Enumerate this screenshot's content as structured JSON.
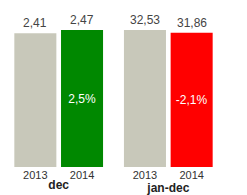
{
  "chart_data": [
    {
      "type": "bar",
      "xlabel": "dec",
      "categories": [
        "2013",
        "2014"
      ],
      "values": [
        2.41,
        2.47
      ],
      "value_labels": [
        "2,41",
        "2,47"
      ],
      "colors": [
        "#c8c8ba",
        "#008800"
      ],
      "data_labels": true,
      "annotations": [
        {
          "category": "2014",
          "text": "2,5%"
        }
      ],
      "ylim": [
        0,
        2.47
      ],
      "tick_labels": "x"
    },
    {
      "type": "bar",
      "xlabel": "jan-dec",
      "categories": [
        "2013",
        "2014"
      ],
      "values": [
        32.53,
        31.86
      ],
      "value_labels": [
        "32,53",
        "31,86"
      ],
      "colors": [
        "#c8c8ba",
        "#ff0000"
      ],
      "data_labels": true,
      "annotations": [
        {
          "category": "2014",
          "text": "-2,1%"
        }
      ],
      "ylim": [
        0,
        32.53
      ],
      "tick_labels": "x"
    }
  ]
}
